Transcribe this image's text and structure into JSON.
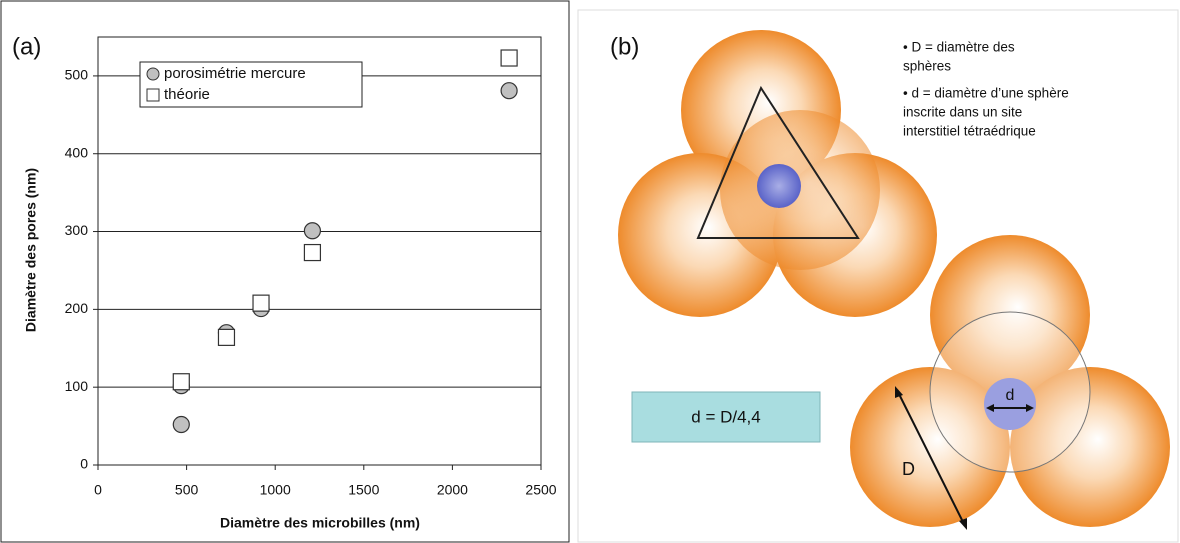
{
  "chart_data": {
    "type": "scatter",
    "annotations": [
      "(a)"
    ],
    "x_label": "Diamètre des microbilles (nm)",
    "y_label": "Diamètre des pores  (nm)",
    "xlim": [
      0,
      2500
    ],
    "xticks": [
      0,
      500,
      1000,
      1500,
      2000,
      2500
    ],
    "ylim": [
      0,
      550
    ],
    "yticks": [
      0,
      100,
      200,
      300,
      400,
      500
    ],
    "grid": true,
    "legend": "top",
    "series": [
      {
        "name": "porosimétrie mercure",
        "marker": "circle",
        "color": "#c0c0c0",
        "x": [
          470,
          470,
          725,
          920,
          1210,
          2320
        ],
        "values": [
          52,
          102,
          170,
          201,
          301,
          481
        ]
      },
      {
        "name": "théorie",
        "marker": "square",
        "color": "#ffffff",
        "x": [
          470,
          725,
          920,
          1210,
          2320
        ],
        "values": [
          107,
          164,
          208,
          273,
          523
        ]
      }
    ]
  },
  "diagram": {
    "label": "(b)",
    "notes": [
      [
        "• D = diamètre des",
        "sphères"
      ],
      [
        "• d = diamètre d’une sphère",
        "inscrite dans un site",
        "interstitiel tétraédrique"
      ]
    ],
    "formula": "d = D/4,4",
    "small_d": "d",
    "big_d": "D"
  }
}
